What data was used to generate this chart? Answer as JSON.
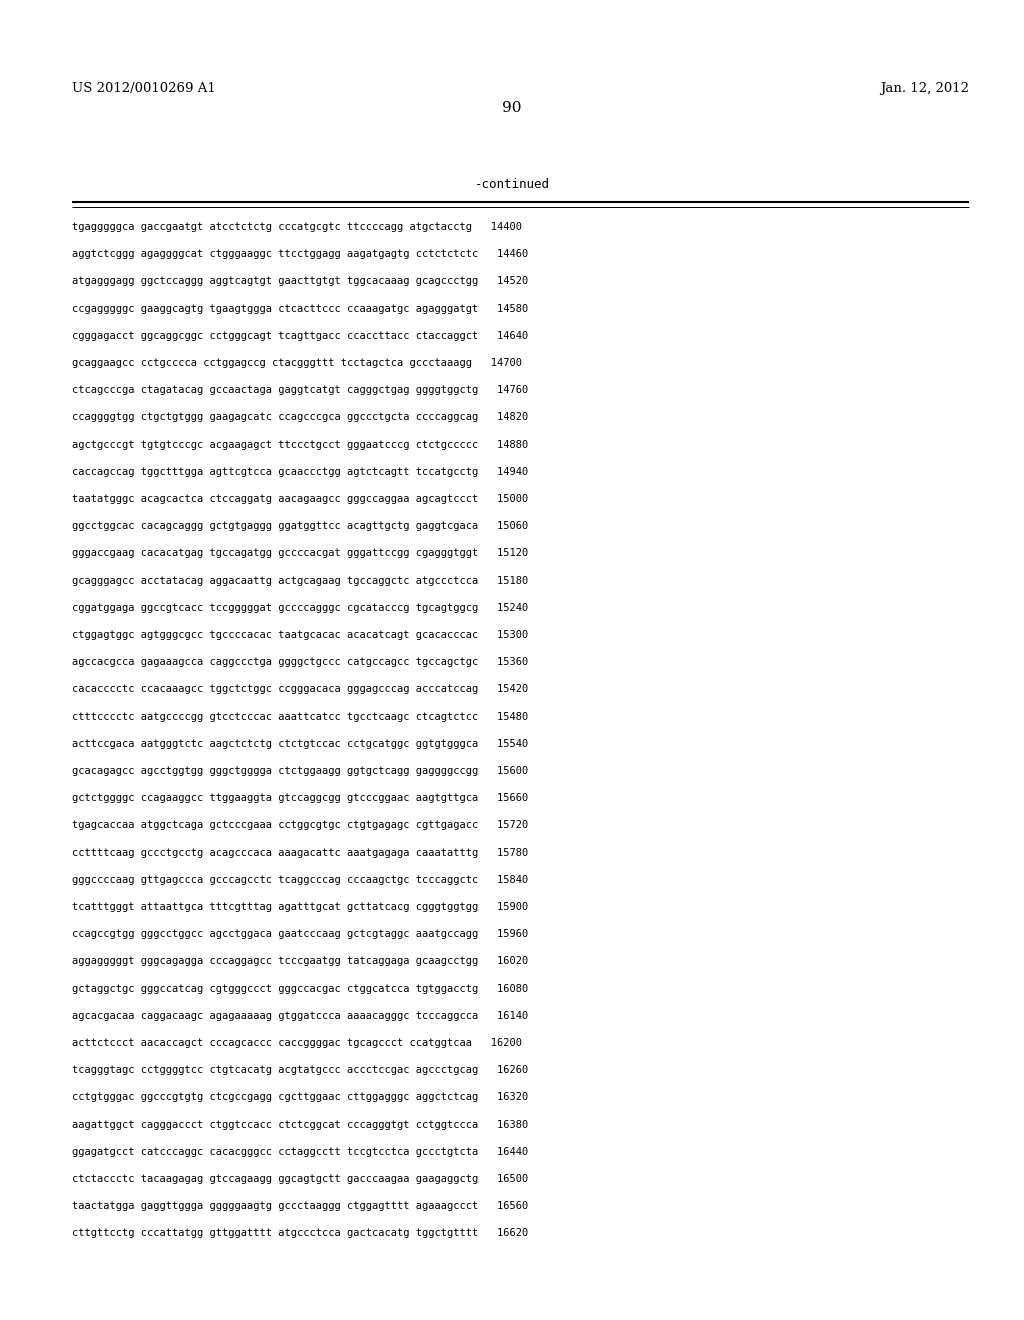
{
  "header_left": "US 2012/0010269 A1",
  "header_right": "Jan. 12, 2012",
  "page_number": "90",
  "continued_label": "-continued",
  "background_color": "#ffffff",
  "text_color": "#000000",
  "font_size": 7.5,
  "header_font_size": 9.5,
  "page_num_font_size": 11,
  "continued_font_size": 9,
  "lines": [
    "tgagggggca gaccgaatgt atcctctctg cccatgcgtc ttccccagg atgctacctg   14400",
    "aggtctcggg agaggggcat ctgggaaggc ttcctggagg aagatgagtg cctctctctc   14460",
    "atgagggagg ggctccaggg aggtcagtgt gaacttgtgt tggcacaaag gcagccctgg   14520",
    "ccgagggggc gaaggcagtg tgaagtggga ctcacttccc ccaaagatgc agagggatgt   14580",
    "cgggagacct ggcaggcggc cctgggcagt tcagttgacc ccaccttacc ctaccaggct   14640",
    "gcaggaagcc cctgcccca cctggagccg ctacgggttt tcctagctca gccctaaagg   14700",
    "ctcagcccga ctagatacag gccaactaga gaggtcatgt cagggctgag ggggtggctg   14760",
    "ccaggggtgg ctgctgtggg gaagagcatc ccagcccgca ggccctgcta ccccaggcag   14820",
    "agctgcccgt tgtgtcccgc acgaagagct ttccctgcct gggaatcccg ctctgccccc   14880",
    "caccagccag tggctttgga agttcgtcca gcaaccctgg agtctcagtt tccatgcctg   14940",
    "taatatgggc acagcactca ctccaggatg aacagaagcc gggccaggaa agcagtccct   15000",
    "ggcctggcac cacagcaggg gctgtgaggg ggatggttcc acagttgctg gaggtcgaca   15060",
    "gggaccgaag cacacatgag tgccagatgg gccccacgat gggattccgg cgagggtggt   15120",
    "gcagggagcc acctatacag aggacaattg actgcagaag tgccaggctc atgccctcca   15180",
    "cggatggaga ggccgtcacc tccgggggat gccccagggc cgcatacccg tgcagtggcg   15240",
    "ctggagtggc agtgggcgcc tgccccacac taatgcacac acacatcagt gcacacccac   15300",
    "agccacgcca gagaaagcca caggccctga ggggctgccc catgccagcc tgccagctgc   15360",
    "cacacccctc ccacaaagcc tggctctggc ccgggacaca gggagcccag acccatccag   15420",
    "ctttcccctc aatgccccgg gtcctcccac aaattcatcc tgcctcaagc ctcagtctcc   15480",
    "acttccgaca aatgggtctc aagctctctg ctctgtccac cctgcatggc ggtgtgggca   15540",
    "gcacagagcc agcctggtgg gggctgggga ctctggaagg ggtgctcagg gaggggccgg   15600",
    "gctctggggc ccagaaggcc ttggaaggta gtccaggcgg gtcccggaac aagtgttgca   15660",
    "tgagcaccaa atggctcaga gctcccgaaa cctggcgtgc ctgtgagagc cgttgagacc   15720",
    "ccttttcaag gccctgcctg acagcccaca aaagacattc aaatgagaga caaatatttg   15780",
    "gggccccaag gttgagccca gcccagcctc tcaggcccag cccaagctgc tcccaggctc   15840",
    "tcatttgggt attaattgca tttcgtttag agatttgcat gcttatcacg cgggtggtgg   15900",
    "ccagccgtgg gggcctggcc agcctggaca gaatcccaag gctcgtaggc aaatgccagg   15960",
    "aggagggggt gggcagagga cccaggagcc tcccgaatgg tatcaggaga gcaagcctgg   16020",
    "gctaggctgc gggccatcag cgtgggccct gggccacgac ctggcatcca tgtggacctg   16080",
    "agcacgacaa caggacaagc agagaaaaag gtggatccca aaaacagggc tcccaggcca   16140",
    "acttctccct aacaccagct cccagcaccc caccggggac tgcagccct ccatggtcaa   16200",
    "tcagggtagc cctggggtcc ctgtcacatg acgtatgccc accctccgac agccctgcag   16260",
    "cctgtgggac ggcccgtgtg ctcgccgagg cgcttggaac cttggagggc aggctctcag   16320",
    "aagattggct cagggaccct ctggtccacc ctctcggcat cccagggtgt cctggtccca   16380",
    "ggagatgcct catcccaggc cacacgggcc cctaggcctt tccgtcctca gccctgtcta   16440",
    "ctctaccctc tacaagagag gtccagaagg ggcagtgctt gacccaagaa gaagaggctg   16500",
    "taactatgga gaggttggga gggggaagtg gccctaaggg ctggagtttt agaaagccct   16560",
    "cttgttcctg cccattatgg gttggatttt atgccctcca gactcacatg tggctgtttt   16620"
  ]
}
